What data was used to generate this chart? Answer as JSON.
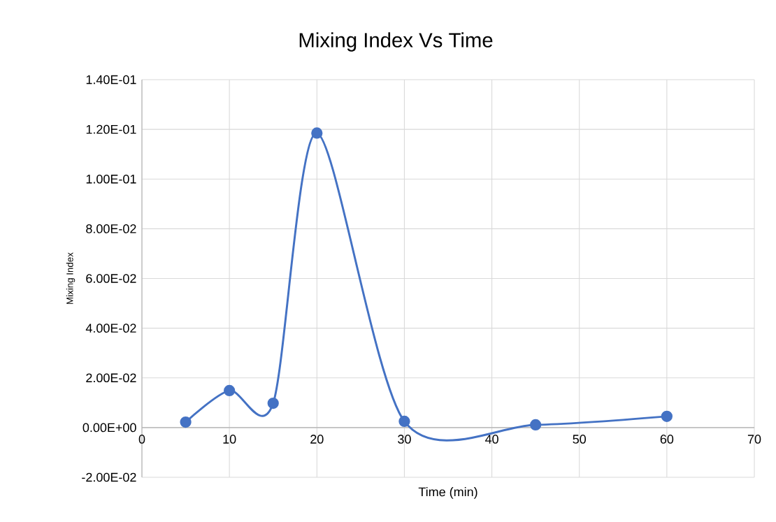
{
  "chart_data": {
    "type": "line",
    "title": "Mixing Index Vs Time",
    "xlabel": "Time (min)",
    "ylabel": "Mixing Index",
    "x": [
      5,
      10,
      15,
      20,
      30,
      45,
      60
    ],
    "series": [
      {
        "color": "#4472c4",
        "values": [
          0.0022,
          0.0149,
          0.0098,
          0.1185,
          0.0025,
          0.0011,
          0.0045
        ]
      }
    ],
    "xlim": [
      0,
      70
    ],
    "xticks": [
      0,
      10,
      20,
      30,
      40,
      50,
      60,
      70
    ],
    "ylim": [
      -0.02,
      0.14
    ],
    "yticks": [
      {
        "value": -0.02,
        "label": "-2.00E-02"
      },
      {
        "value": 0,
        "label": "0.00E+00"
      },
      {
        "value": 0.02,
        "label": "2.00E-02"
      },
      {
        "value": 0.04,
        "label": "4.00E-02"
      },
      {
        "value": 0.06,
        "label": "6.00E-02"
      },
      {
        "value": 0.08,
        "label": "8.00E-02"
      },
      {
        "value": 0.1,
        "label": "1.00E-01"
      },
      {
        "value": 0.12,
        "label": "1.20E-01"
      },
      {
        "value": 0.14,
        "label": "1.40E-01"
      }
    ],
    "grid": true,
    "marker": "circle",
    "line_style": "solid"
  }
}
